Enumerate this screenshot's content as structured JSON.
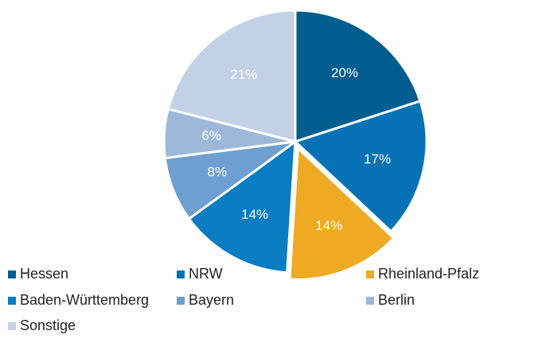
{
  "chart_data": {
    "type": "pie",
    "categories": [
      "Hessen",
      "NRW",
      "Rheinland-Pfalz",
      "Baden-Württemberg",
      "Bayern",
      "Berlin",
      "Sonstige"
    ],
    "values": [
      20,
      17,
      14,
      14,
      8,
      6,
      21
    ],
    "value_labels": [
      "20%",
      "17%",
      "14%",
      "14%",
      "8%",
      "6%",
      "21%"
    ],
    "colors": [
      "#005d8f",
      "#0672b5",
      "#eeaa22",
      "#0a7cc2",
      "#6e9fd1",
      "#9db9da",
      "#c3d1e7"
    ],
    "exploded": "Rheinland-Pfalz",
    "legend": "bottom"
  }
}
